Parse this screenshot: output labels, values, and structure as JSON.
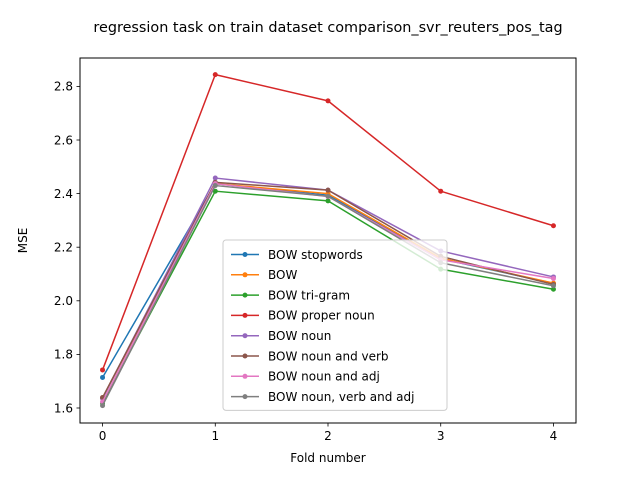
{
  "chart_data": {
    "type": "line",
    "title": "regression task on train dataset comparison_svr_reuters_pos_tag",
    "xlabel": "Fold number",
    "ylabel": "MSE",
    "x": [
      0,
      1,
      2,
      3,
      4
    ],
    "xticks": [
      "0",
      "1",
      "2",
      "3",
      "4"
    ],
    "yticks": [
      "1.6",
      "1.8",
      "2.0",
      "2.2",
      "2.4",
      "2.6",
      "2.8"
    ],
    "xlim": [
      -0.2,
      4.2
    ],
    "ylim": [
      1.544,
      2.906
    ],
    "grid": false,
    "legend_position": "lower center",
    "series": [
      {
        "name": "BOW stopwords",
        "color": "#1f77b4",
        "values": [
          1.714,
          2.437,
          2.394,
          2.157,
          2.065
        ]
      },
      {
        "name": "BOW",
        "color": "#ff7f0e",
        "values": [
          1.638,
          2.437,
          2.4,
          2.159,
          2.066
        ]
      },
      {
        "name": "BOW tri-gram",
        "color": "#2ca02c",
        "values": [
          1.617,
          2.409,
          2.373,
          2.118,
          2.043
        ]
      },
      {
        "name": "BOW proper noun",
        "color": "#d62728",
        "values": [
          1.742,
          2.844,
          2.746,
          2.409,
          2.28
        ]
      },
      {
        "name": "BOW noun",
        "color": "#9467bd",
        "values": [
          1.636,
          2.458,
          2.413,
          2.186,
          2.089
        ]
      },
      {
        "name": "BOW noun and verb",
        "color": "#8c564b",
        "values": [
          1.639,
          2.442,
          2.413,
          2.166,
          2.061
        ]
      },
      {
        "name": "BOW noun and adj",
        "color": "#e377c2",
        "values": [
          1.623,
          2.437,
          2.389,
          2.153,
          2.083
        ]
      },
      {
        "name": "BOW noun, verb and adj",
        "color": "#7f7f7f",
        "values": [
          1.609,
          2.43,
          2.39,
          2.142,
          2.056
        ]
      }
    ]
  }
}
